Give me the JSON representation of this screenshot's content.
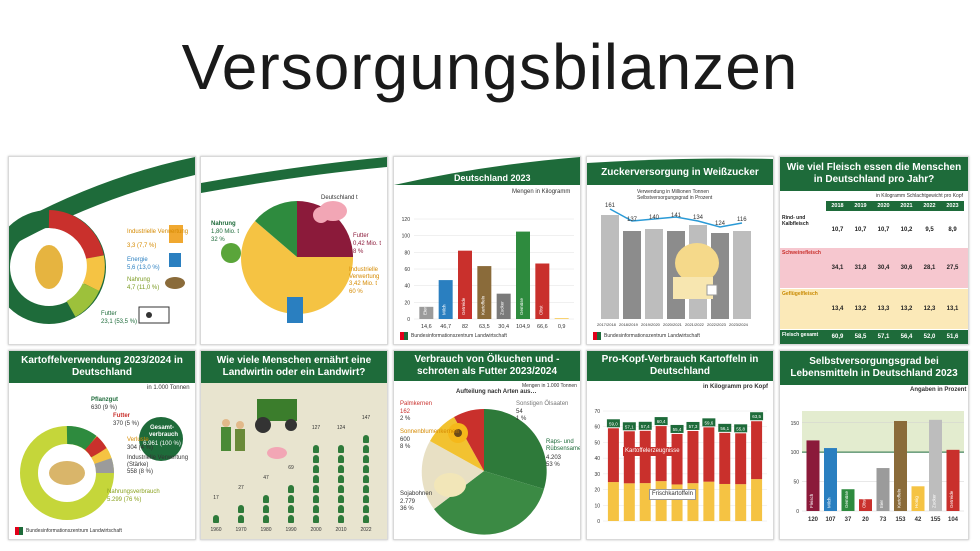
{
  "page_title": "Versorgungsbilanzen",
  "colors": {
    "brand_green": "#1e6b3a",
    "light_green": "#9dc13b",
    "red": "#c9302c",
    "yellow": "#f5c343",
    "grey": "#9b9b9b"
  },
  "tiles": {
    "t1": {
      "labels": [
        "Industrielle Verwertung",
        "3,3 (7,7 %)",
        "Energie",
        "5,6 (13,0 %)",
        "Nahrung",
        "4,7 (11,0 %)",
        "Futter",
        "23,1 (53,5 %)"
      ],
      "footer": "Bundesinformationszentrum Landwirtschaft"
    },
    "t2": {
      "title": "Deutschland t",
      "labels": [
        "Nahrung",
        "1,80 Mio. t",
        "32 %",
        "Futter",
        "0,42 Mio. t",
        "8 %",
        "Industrielle Verwertung",
        "3,42 Mio. t",
        "60 %"
      ],
      "footer": "Bundesinformationszentrum Landwirtschaft"
    },
    "t3": {
      "title": "Deutschland 2023",
      "unit": "Mengen in Kilogramm",
      "yticks": [
        "0",
        "20",
        "40",
        "60",
        "80",
        "100",
        "120"
      ],
      "footer": "Bundesinformationszentrum Landwirtschaft"
    },
    "t4": {
      "title": "Zuckerversorgung in Weißzucker",
      "legend": [
        "Verwendung in Millionen Tonnen",
        "Selbstversorgungsgrad in Prozent"
      ],
      "values_top": [
        "161",
        "137",
        "140",
        "141",
        "134",
        "124",
        "116"
      ],
      "years": [
        "2017/2018",
        "2018/2019",
        "2019/2020",
        "2020/2021",
        "2021/2022",
        "2022/2023",
        "2023/2024"
      ],
      "footer": "Bundesinformationszentrum Landwirtschaft"
    },
    "t5": {
      "title": "Wie viel Fleisch essen die Menschen in Deutschland pro Jahr?",
      "unit": "in Kilogramm Schlachtgewicht pro Kopf",
      "years": [
        "2018",
        "2019",
        "2020",
        "2021",
        "2022",
        "2023"
      ],
      "rows": [
        {
          "label": "Rind- und Kalbfleisch",
          "values": [
            "10,7",
            "10,7",
            "10,7",
            "10,2",
            "9,5",
            "8,9"
          ]
        },
        {
          "label": "Schweinefleisch",
          "values": [
            "34,1",
            "31,8",
            "30,4",
            "30,6",
            "28,1",
            "27,5"
          ]
        },
        {
          "label": "Geflügelfleisch",
          "values": [
            "13,4",
            "13,2",
            "13,3",
            "13,2",
            "12,3",
            "13,1"
          ]
        },
        {
          "label": "Fleisch gesamt",
          "values": [
            "60,9",
            "58,5",
            "57,1",
            "56,4",
            "52,0",
            "51,6"
          ]
        }
      ]
    },
    "t6": {
      "title": "Kartoffelverwendung 2023/2024 in Deutschland",
      "unit": "in 1.000 Tonnen",
      "labels": [
        "Pflanzgut",
        "630 (9 %)",
        "Futter",
        "370 (5 %)",
        "Verluste",
        "304 (4 %)",
        "Industrielle Verwertung (Stärke)",
        "558 (8 %)",
        "Nahrungsverbrauch",
        "5.299 (76 %)"
      ],
      "total_label": "Gesamt-verbrauch",
      "total_value": "6.961 (100 %)",
      "footer": "Bundesinformationszentrum Landwirtschaft"
    },
    "t7": {
      "title": "Wie viele Menschen ernährt eine Landwirtin oder ein Landwirt?",
      "years": [
        "1960",
        "1970",
        "1980",
        "1990",
        "2000",
        "2010",
        "2022"
      ],
      "values": [
        "17",
        "27",
        "47",
        "69",
        "127",
        "124",
        "147"
      ]
    },
    "t8": {
      "title": "Verbrauch von Ölkuchen und -schroten als Futter 2023/2024",
      "subtitle": "Aufteilung nach Arten aus…",
      "unit": "Mengen in 1.000 Tonnen",
      "labels": [
        "Palmkernen",
        "162",
        "2 %",
        "Sonnenblumenkernen",
        "600",
        "8 %",
        "Sojabohnen",
        "2.779",
        "36 %",
        "Sonstigen Ölsaaten",
        "54",
        "1 %",
        "Raps- und Rübsensamen",
        "4.203",
        "53 %"
      ]
    },
    "t9": {
      "title": "Pro-Kopf-Verbrauch Kartoffeln in Deutschland",
      "unit": "in Kilogramm pro Kopf",
      "top_values": [
        "59,0",
        "57,1",
        "57,4",
        "60,4",
        "55,4",
        "57,3",
        "59,6",
        "56,1",
        "55,8",
        "63,5"
      ],
      "annotations": [
        "Kartoffelerzeugnisse",
        "Frischkartoffeln"
      ],
      "yticks": [
        "0",
        "10",
        "20",
        "30",
        "40",
        "50",
        "60",
        "70"
      ]
    },
    "t10": {
      "title": "Selbstversorgungsgrad bei Lebensmitteln in Deutschland 2023",
      "unit": "Angaben in Prozent",
      "yticks": [
        "0",
        "50",
        "100",
        "150"
      ],
      "values": [
        "120",
        "107",
        "37",
        "20",
        "73",
        "153",
        "42",
        "155",
        "104"
      ]
    }
  },
  "chart_data": [
    {
      "type": "bar",
      "title": "Deutschland 2023",
      "categories": [
        "Eier",
        "Milch",
        "Getreide",
        "Kartoffeln",
        "Zucker",
        "Gemüse",
        "Obst",
        "Honig"
      ],
      "values": [
        14.6,
        46.7,
        82.0,
        63.5,
        30.4,
        104.9,
        66.6,
        0.9
      ],
      "ylabel": "Mengen in Kilogramm",
      "ylim": [
        0,
        120
      ]
    },
    {
      "type": "bar",
      "title": "Selbstversorgungsgrad bei Lebensmitteln in Deutschland 2023",
      "categories": [
        "Fleisch",
        "Milch",
        "Gemüse",
        "Obst",
        "Eier",
        "Kartoffeln",
        "Honig",
        "Zucker",
        "Getreide"
      ],
      "values": [
        120,
        107,
        37,
        20,
        73,
        153,
        42,
        155,
        104
      ],
      "ylabel": "Angaben in Prozent",
      "ylim": [
        0,
        170
      ]
    }
  ]
}
